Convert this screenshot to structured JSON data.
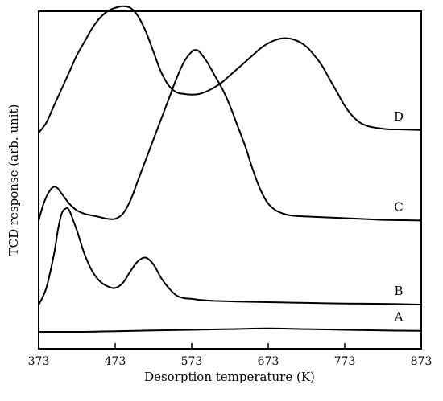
{
  "chart_data": {
    "type": "line",
    "title": "",
    "xlabel": "Desorption temperature (K)",
    "ylabel": "TCD response (arb. unit)",
    "xlim": [
      373,
      873
    ],
    "ylim": [
      0,
      100
    ],
    "xticks": [
      373,
      473,
      573,
      673,
      773,
      873
    ],
    "x_tick_labels": [
      "373",
      "473",
      "573",
      "673",
      "773",
      "873"
    ],
    "grid": false,
    "series": [
      {
        "name": "A",
        "x": [
          373,
          423,
          473,
          523,
          573,
          623,
          673,
          723,
          773,
          823,
          873
        ],
        "y": [
          5.0,
          5.0,
          5.2,
          5.4,
          5.6,
          5.8,
          6.0,
          5.8,
          5.6,
          5.4,
          5.3
        ]
      },
      {
        "name": "B",
        "x": [
          373,
          383,
          393,
          398,
          403,
          408,
          413,
          423,
          433,
          443,
          453,
          463,
          473,
          483,
          493,
          503,
          513,
          523,
          533,
          543,
          553,
          563,
          573,
          583,
          603,
          633,
          673,
          723,
          773,
          823,
          873
        ],
        "y": [
          13,
          18,
          28,
          35,
          40,
          41.5,
          41,
          35,
          28,
          23,
          20,
          18.5,
          18,
          19.5,
          23,
          26,
          27,
          25,
          21,
          18,
          15.8,
          15,
          14.8,
          14.5,
          14.2,
          14.0,
          13.8,
          13.6,
          13.4,
          13.3,
          13.1
        ]
      },
      {
        "name": "C",
        "x": [
          373,
          378,
          383,
          388,
          393,
          398,
          403,
          413,
          423,
          433,
          443,
          453,
          463,
          473,
          483,
          493,
          503,
          513,
          523,
          533,
          543,
          553,
          563,
          573,
          578,
          583,
          593,
          603,
          613,
          623,
          633,
          643,
          653,
          663,
          673,
          683,
          693,
          703,
          723,
          743,
          773,
          803,
          823,
          873
        ],
        "y": [
          38,
          42,
          45,
          47,
          48,
          47.5,
          46,
          43,
          41,
          40,
          39.5,
          39,
          38.5,
          38.5,
          40,
          44,
          50,
          56,
          62,
          68,
          74,
          80,
          85,
          88,
          88.5,
          88,
          85,
          81,
          77,
          72,
          66,
          60,
          53,
          47,
          43,
          41,
          40,
          39.5,
          39.2,
          39,
          38.7,
          38.4,
          38.2,
          38
        ]
      },
      {
        "name": "D",
        "x": [
          373,
          383,
          393,
          403,
          413,
          423,
          433,
          443,
          453,
          463,
          473,
          483,
          493,
          503,
          513,
          523,
          533,
          543,
          553,
          563,
          573,
          583,
          593,
          603,
          613,
          623,
          633,
          643,
          653,
          663,
          673,
          683,
          693,
          703,
          713,
          723,
          733,
          743,
          753,
          763,
          773,
          783,
          793,
          803,
          813,
          823,
          833,
          843,
          873
        ],
        "y": [
          64,
          67,
          72,
          77,
          82,
          87,
          91,
          95,
          98,
          100,
          101,
          101.5,
          101,
          98.5,
          94,
          88,
          82,
          78,
          76,
          75.5,
          75.3,
          75.5,
          76.3,
          77.5,
          79,
          81,
          83,
          85,
          87,
          89,
          90.5,
          91.5,
          92,
          91.8,
          91,
          89.5,
          87,
          84,
          80,
          76,
          72,
          69,
          67,
          66,
          65.5,
          65.2,
          65,
          65,
          64.8
        ]
      }
    ]
  }
}
